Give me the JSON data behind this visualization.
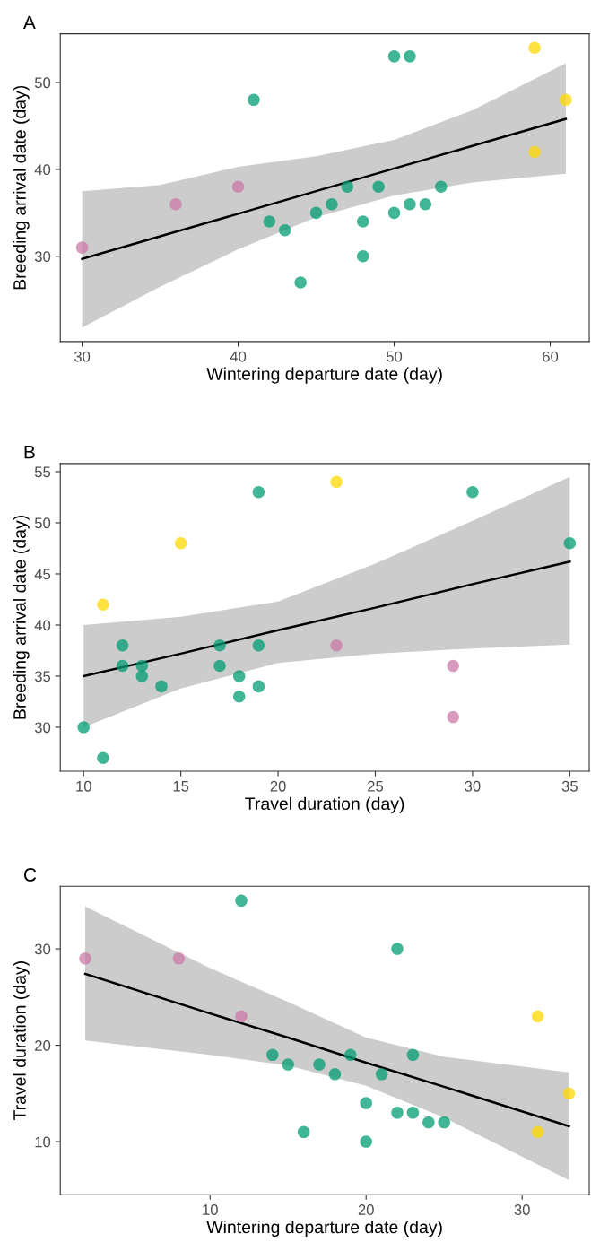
{
  "chart_data": [
    {
      "type": "scatter",
      "title": "A",
      "xlabel": "Wintering departure date (day)",
      "ylabel": "Breeding arrival date (day)",
      "xlim": [
        28.6,
        62.5
      ],
      "ylim": [
        20.2,
        55.6
      ],
      "xticks": [
        30,
        40,
        50,
        60
      ],
      "yticks": [
        30,
        40,
        50
      ],
      "grid": false,
      "legend": false,
      "marker": "circle",
      "series": [
        {
          "color": "#009e73",
          "x": [
            41,
            50,
            51,
            42,
            43,
            44,
            45,
            46,
            47,
            48,
            48,
            49,
            50,
            51,
            52,
            53
          ],
          "values": [
            48,
            53,
            53,
            34,
            33,
            27,
            35,
            36,
            38,
            34,
            30,
            38,
            35,
            36,
            36,
            38
          ]
        },
        {
          "color": "#ffd700",
          "x": [
            59,
            61,
            59
          ],
          "values": [
            54,
            48,
            42
          ]
        },
        {
          "color": "#cc79a7",
          "x": [
            30,
            36,
            40
          ],
          "values": [
            31,
            36,
            38
          ]
        },
        {
          "type": "line",
          "marker": "none",
          "color": "#000000",
          "x": [
            30,
            35,
            40,
            45,
            50,
            55,
            61
          ],
          "values": [
            29.7,
            32.3,
            34.9,
            37.5,
            40.1,
            42.7,
            45.8
          ],
          "lower": [
            21.8,
            26.5,
            30.8,
            34.5,
            37.0,
            38.5,
            39.5
          ],
          "upper": [
            37.5,
            38.2,
            40.3,
            41.5,
            43.4,
            46.8,
            52.2
          ]
        }
      ]
    },
    {
      "type": "scatter",
      "title": "B",
      "xlabel": "Travel duration (day)",
      "ylabel": "Breeding arrival date (day)",
      "xlim": [
        8.8,
        36.0
      ],
      "ylim": [
        25.7,
        55.8
      ],
      "xticks": [
        10,
        15,
        20,
        25,
        30,
        35
      ],
      "yticks": [
        30,
        35,
        40,
        45,
        50,
        55
      ],
      "grid": false,
      "legend": false,
      "marker": "circle",
      "series": [
        {
          "color": "#009e73",
          "x": [
            10,
            11,
            12,
            12,
            13,
            13,
            14,
            17,
            17,
            18,
            18,
            19,
            19,
            19,
            30,
            35
          ],
          "values": [
            30,
            27,
            38,
            36,
            36,
            35,
            34,
            38,
            36,
            35,
            33,
            38,
            34,
            53,
            53,
            48
          ]
        },
        {
          "color": "#ffd700",
          "x": [
            11,
            15,
            23
          ],
          "values": [
            42,
            48,
            54
          ]
        },
        {
          "color": "#cc79a7",
          "x": [
            23,
            29,
            29
          ],
          "values": [
            38,
            36,
            31
          ]
        },
        {
          "type": "line",
          "marker": "none",
          "color": "#000000",
          "x": [
            10,
            15,
            20,
            25,
            30,
            35
          ],
          "values": [
            35.0,
            37.2,
            39.5,
            41.7,
            44.0,
            46.2
          ],
          "lower": [
            30.0,
            33.8,
            36.3,
            37.2,
            37.7,
            38.1
          ],
          "upper": [
            40.0,
            40.8,
            42.3,
            46.0,
            50.2,
            54.5
          ]
        }
      ]
    },
    {
      "type": "scatter",
      "title": "C",
      "xlabel": "Wintering departure date (day)",
      "ylabel": "Travel duration (day)",
      "xlim": [
        0.4,
        34.3
      ],
      "ylim": [
        4.5,
        36.5
      ],
      "xticks": [
        10,
        20,
        30
      ],
      "yticks": [
        10,
        20,
        30
      ],
      "grid": false,
      "legend": false,
      "marker": "circle",
      "series": [
        {
          "color": "#009e73",
          "x": [
            12,
            22,
            14,
            15,
            17,
            18,
            19,
            21,
            23,
            20,
            16,
            20,
            22,
            23,
            24,
            25
          ],
          "values": [
            35,
            30,
            19,
            18,
            18,
            17,
            19,
            17,
            19,
            14,
            11,
            10,
            13,
            13,
            12,
            12
          ]
        },
        {
          "color": "#ffd700",
          "x": [
            31,
            33,
            31
          ],
          "values": [
            23,
            15,
            11
          ]
        },
        {
          "color": "#cc79a7",
          "x": [
            2,
            8,
            12
          ],
          "values": [
            29,
            29,
            23
          ]
        },
        {
          "type": "line",
          "marker": "none",
          "color": "#000000",
          "x": [
            2,
            10,
            15,
            20,
            25,
            33
          ],
          "values": [
            27.4,
            23.3,
            20.8,
            18.2,
            15.7,
            11.6
          ],
          "lower": [
            20.5,
            19.0,
            17.9,
            15.8,
            12.5,
            6.0
          ],
          "upper": [
            34.4,
            28.0,
            24.5,
            20.8,
            18.8,
            17.2
          ]
        }
      ]
    }
  ]
}
